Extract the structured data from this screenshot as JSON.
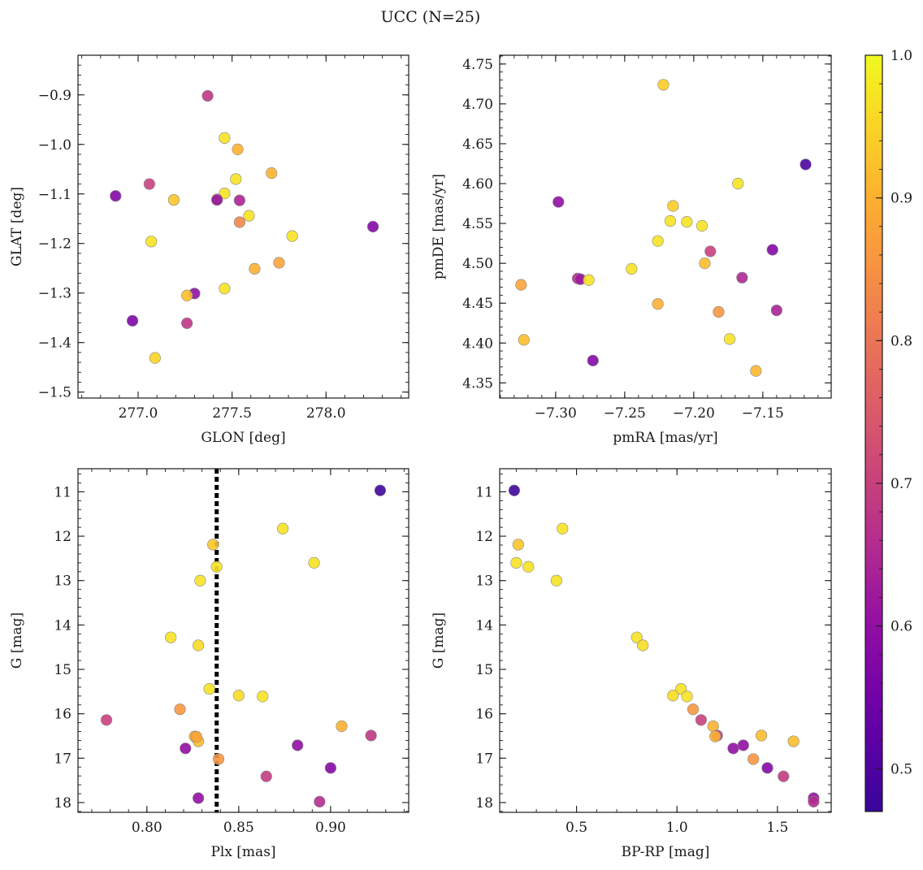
{
  "figure": {
    "title": "UCC (N=25)"
  },
  "colorbar": {
    "min": 0.47,
    "max": 1.0,
    "ticks": [
      0.5,
      0.6,
      0.7,
      0.8,
      0.9,
      1.0
    ],
    "tick_labels": [
      "0.5",
      "0.6",
      "0.7",
      "0.8",
      "0.9",
      "1.0"
    ],
    "colormap": "plasma"
  },
  "chart_data": [
    {
      "type": "scatter",
      "id": "glon-glat",
      "xlabel": "GLON [deg]",
      "ylabel": "GLAT [deg]",
      "xlim": [
        276.68,
        278.44
      ],
      "ylim": [
        -1.512,
        -0.82
      ],
      "y_inverted": false,
      "xticks": [
        277.0,
        277.5,
        278.0
      ],
      "xtick_labels": [
        "277.0",
        "277.5",
        "278.0"
      ],
      "yticks": [
        -1.5,
        -1.4,
        -1.3,
        -1.2,
        -1.1,
        -1.0,
        -0.9
      ],
      "ytick_labels": [
        "−1.5",
        "−1.4",
        "−1.3",
        "−1.2",
        "−1.1",
        "−1.0",
        "−0.9"
      ],
      "points": [
        {
          "x": 277.37,
          "y": -0.902,
          "c": 0.68
        },
        {
          "x": 277.46,
          "y": -0.987,
          "c": 0.97
        },
        {
          "x": 277.53,
          "y": -1.01,
          "c": 0.9
        },
        {
          "x": 277.71,
          "y": -1.058,
          "c": 0.9
        },
        {
          "x": 277.52,
          "y": -1.07,
          "c": 0.97
        },
        {
          "x": 277.06,
          "y": -1.08,
          "c": 0.7
        },
        {
          "x": 277.46,
          "y": -1.099,
          "c": 0.97
        },
        {
          "x": 276.88,
          "y": -1.104,
          "c": 0.58
        },
        {
          "x": 277.19,
          "y": -1.112,
          "c": 0.93
        },
        {
          "x": 277.42,
          "y": -1.111,
          "c": 0.98
        },
        {
          "x": 277.54,
          "y": -1.113,
          "c": 0.64
        },
        {
          "x": 277.59,
          "y": -1.144,
          "c": 0.97
        },
        {
          "x": 277.54,
          "y": -1.157,
          "c": 0.83
        },
        {
          "x": 278.25,
          "y": -1.166,
          "c": 0.58
        },
        {
          "x": 277.82,
          "y": -1.185,
          "c": 0.97
        },
        {
          "x": 277.07,
          "y": -1.196,
          "c": 0.97
        },
        {
          "x": 277.75,
          "y": -1.239,
          "c": 0.88
        },
        {
          "x": 277.62,
          "y": -1.251,
          "c": 0.9
        },
        {
          "x": 277.46,
          "y": -1.291,
          "c": 0.97
        },
        {
          "x": 277.3,
          "y": -1.301,
          "c": 0.6
        },
        {
          "x": 277.26,
          "y": -1.305,
          "c": 0.92
        },
        {
          "x": 276.97,
          "y": -1.356,
          "c": 0.57
        },
        {
          "x": 277.26,
          "y": -1.361,
          "c": 0.68
        },
        {
          "x": 277.09,
          "y": -1.431,
          "c": 0.95
        },
        {
          "x": 277.42,
          "y": -1.112,
          "c": 0.6
        }
      ]
    },
    {
      "type": "scatter",
      "id": "pmra-pmde",
      "xlabel": "pmRA [mas/yr]",
      "ylabel": "pmDE [mas/yr]",
      "xlim": [
        -7.3405,
        -7.1005
      ],
      "ylim": [
        4.331,
        4.761
      ],
      "y_inverted": false,
      "xticks": [
        -7.3,
        -7.25,
        -7.2,
        -7.15,
        -7.1
      ],
      "xtick_labels": [
        "−7.30",
        "−7.25",
        "−7.20",
        "−7.15",
        "−7.10"
      ],
      "yticks": [
        4.35,
        4.4,
        4.45,
        4.5,
        4.55,
        4.6,
        4.65,
        4.7,
        4.75
      ],
      "ytick_labels": [
        "4.35",
        "4.40",
        "4.45",
        "4.50",
        "4.55",
        "4.60",
        "4.65",
        "4.70",
        "4.75"
      ],
      "points": [
        {
          "x": -7.222,
          "y": 4.724,
          "c": 0.94
        },
        {
          "x": -7.119,
          "y": 4.624,
          "c": 0.5
        },
        {
          "x": -7.298,
          "y": 4.577,
          "c": 0.6
        },
        {
          "x": -7.168,
          "y": 4.6,
          "c": 0.97
        },
        {
          "x": -7.215,
          "y": 4.572,
          "c": 0.94
        },
        {
          "x": -7.217,
          "y": 4.553,
          "c": 0.97
        },
        {
          "x": -7.205,
          "y": 4.552,
          "c": 0.97
        },
        {
          "x": -7.194,
          "y": 4.547,
          "c": 0.97
        },
        {
          "x": -7.226,
          "y": 4.528,
          "c": 0.97
        },
        {
          "x": -7.143,
          "y": 4.517,
          "c": 0.58
        },
        {
          "x": -7.188,
          "y": 4.515,
          "c": 0.7
        },
        {
          "x": -7.192,
          "y": 4.5,
          "c": 0.92
        },
        {
          "x": -7.245,
          "y": 4.493,
          "c": 0.97
        },
        {
          "x": -7.165,
          "y": 4.482,
          "c": 0.65
        },
        {
          "x": -7.284,
          "y": 4.481,
          "c": 0.66
        },
        {
          "x": -7.282,
          "y": 4.48,
          "c": 0.62
        },
        {
          "x": -7.276,
          "y": 4.479,
          "c": 0.97
        },
        {
          "x": -7.325,
          "y": 4.473,
          "c": 0.88
        },
        {
          "x": -7.226,
          "y": 4.449,
          "c": 0.9
        },
        {
          "x": -7.14,
          "y": 4.441,
          "c": 0.64
        },
        {
          "x": -7.182,
          "y": 4.439,
          "c": 0.86
        },
        {
          "x": -7.174,
          "y": 4.405,
          "c": 0.97
        },
        {
          "x": -7.323,
          "y": 4.404,
          "c": 0.92
        },
        {
          "x": -7.273,
          "y": 4.378,
          "c": 0.58
        },
        {
          "x": -7.155,
          "y": 4.365,
          "c": 0.91
        }
      ]
    },
    {
      "type": "scatter",
      "id": "plx-g",
      "xlabel": "Plx [mas]",
      "ylabel": "G [mag]",
      "xlim": [
        0.7625,
        0.9425
      ],
      "ylim": [
        18.22,
        10.48
      ],
      "y_inverted": true,
      "vline": 0.838,
      "xticks": [
        0.8,
        0.85,
        0.9
      ],
      "xtick_labels": [
        "0.80",
        "0.85",
        "0.90"
      ],
      "yticks": [
        11,
        12,
        13,
        14,
        15,
        16,
        17,
        18
      ],
      "ytick_labels": [
        "11",
        "12",
        "13",
        "14",
        "15",
        "16",
        "17",
        "18"
      ],
      "points": [
        {
          "x": 0.927,
          "y": 10.97,
          "c": 0.48
        },
        {
          "x": 0.874,
          "y": 11.83,
          "c": 0.97
        },
        {
          "x": 0.836,
          "y": 12.19,
          "c": 0.93
        },
        {
          "x": 0.891,
          "y": 12.6,
          "c": 0.97
        },
        {
          "x": 0.838,
          "y": 12.69,
          "c": 0.97
        },
        {
          "x": 0.829,
          "y": 13.0,
          "c": 0.97
        },
        {
          "x": 0.813,
          "y": 14.28,
          "c": 0.97
        },
        {
          "x": 0.828,
          "y": 14.46,
          "c": 0.96
        },
        {
          "x": 0.834,
          "y": 15.44,
          "c": 0.97
        },
        {
          "x": 0.85,
          "y": 15.59,
          "c": 0.96
        },
        {
          "x": 0.863,
          "y": 15.61,
          "c": 0.97
        },
        {
          "x": 0.818,
          "y": 15.9,
          "c": 0.86
        },
        {
          "x": 0.778,
          "y": 16.14,
          "c": 0.7
        },
        {
          "x": 0.906,
          "y": 16.28,
          "c": 0.9
        },
        {
          "x": 0.922,
          "y": 16.49,
          "c": 0.68
        },
        {
          "x": 0.826,
          "y": 16.51,
          "c": 0.9
        },
        {
          "x": 0.828,
          "y": 16.62,
          "c": 0.92
        },
        {
          "x": 0.882,
          "y": 16.71,
          "c": 0.6
        },
        {
          "x": 0.821,
          "y": 16.78,
          "c": 0.6
        },
        {
          "x": 0.839,
          "y": 17.02,
          "c": 0.86
        },
        {
          "x": 0.9,
          "y": 17.22,
          "c": 0.58
        },
        {
          "x": 0.865,
          "y": 17.41,
          "c": 0.69
        },
        {
          "x": 0.828,
          "y": 17.9,
          "c": 0.6
        },
        {
          "x": 0.894,
          "y": 17.98,
          "c": 0.66
        },
        {
          "x": 0.827,
          "y": 16.52,
          "c": 0.88
        }
      ]
    },
    {
      "type": "scatter",
      "id": "bprp-g",
      "xlabel": "BP-RP [mag]",
      "ylabel": "G [mag]",
      "xlim": [
        0.1175,
        1.7675
      ],
      "ylim": [
        18.22,
        10.48
      ],
      "y_inverted": true,
      "xticks": [
        0.5,
        1.0,
        1.5
      ],
      "xtick_labels": [
        "0.5",
        "1.0",
        "1.5"
      ],
      "yticks": [
        11,
        12,
        13,
        14,
        15,
        16,
        17,
        18
      ],
      "ytick_labels": [
        "11",
        "12",
        "13",
        "14",
        "15",
        "16",
        "17",
        "18"
      ],
      "points": [
        {
          "x": 0.19,
          "y": 10.97,
          "c": 0.48
        },
        {
          "x": 0.43,
          "y": 11.83,
          "c": 0.97
        },
        {
          "x": 0.21,
          "y": 12.19,
          "c": 0.93
        },
        {
          "x": 0.2,
          "y": 12.6,
          "c": 0.97
        },
        {
          "x": 0.26,
          "y": 12.69,
          "c": 0.97
        },
        {
          "x": 0.4,
          "y": 13.0,
          "c": 0.97
        },
        {
          "x": 0.8,
          "y": 14.28,
          "c": 0.97
        },
        {
          "x": 0.83,
          "y": 14.46,
          "c": 0.96
        },
        {
          "x": 1.02,
          "y": 15.44,
          "c": 0.97
        },
        {
          "x": 0.98,
          "y": 15.59,
          "c": 0.96
        },
        {
          "x": 1.05,
          "y": 15.61,
          "c": 0.97
        },
        {
          "x": 1.08,
          "y": 15.9,
          "c": 0.86
        },
        {
          "x": 1.12,
          "y": 16.14,
          "c": 0.7
        },
        {
          "x": 1.18,
          "y": 16.28,
          "c": 0.9
        },
        {
          "x": 1.2,
          "y": 16.49,
          "c": 0.68
        },
        {
          "x": 1.19,
          "y": 16.51,
          "c": 0.9
        },
        {
          "x": 1.42,
          "y": 16.49,
          "c": 0.92
        },
        {
          "x": 1.58,
          "y": 16.62,
          "c": 0.92
        },
        {
          "x": 1.33,
          "y": 16.71,
          "c": 0.6
        },
        {
          "x": 1.28,
          "y": 16.78,
          "c": 0.6
        },
        {
          "x": 1.38,
          "y": 17.02,
          "c": 0.86
        },
        {
          "x": 1.45,
          "y": 17.22,
          "c": 0.58
        },
        {
          "x": 1.53,
          "y": 17.41,
          "c": 0.69
        },
        {
          "x": 1.68,
          "y": 17.9,
          "c": 0.6
        },
        {
          "x": 1.68,
          "y": 17.98,
          "c": 0.66
        }
      ]
    }
  ]
}
